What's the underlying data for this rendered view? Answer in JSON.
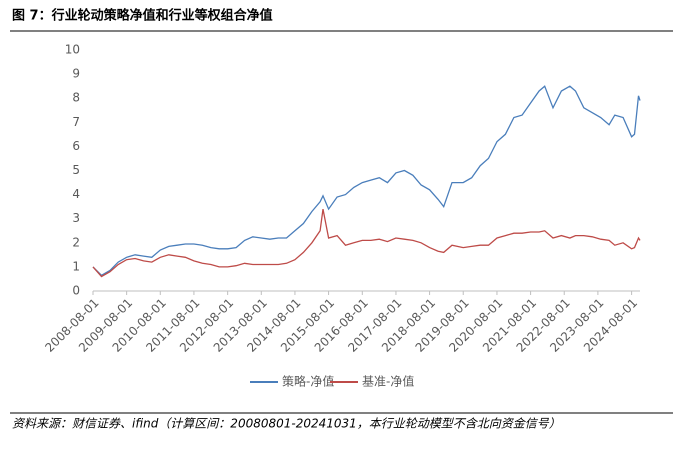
{
  "chart_data": {
    "type": "line",
    "title": "图 7：行业轮动策略净值和行业等权组合净值",
    "source": "资料来源：财信证券、ifind（计算区间：20080801-20241031，本行业轮动模型不含北向资金信号）",
    "x": [
      "2008-08-01",
      "2008-11-01",
      "2009-02-01",
      "2009-05-01",
      "2009-08-01",
      "2009-11-01",
      "2010-02-01",
      "2010-05-01",
      "2010-08-01",
      "2010-11-01",
      "2011-02-01",
      "2011-05-01",
      "2011-08-01",
      "2011-11-01",
      "2012-02-01",
      "2012-05-01",
      "2012-08-01",
      "2012-11-01",
      "2013-02-01",
      "2013-05-01",
      "2013-08-01",
      "2013-11-01",
      "2014-02-01",
      "2014-05-01",
      "2014-08-01",
      "2014-11-01",
      "2015-02-01",
      "2015-05-01",
      "2015-06-01",
      "2015-08-01",
      "2015-11-01",
      "2016-02-01",
      "2016-05-01",
      "2016-08-01",
      "2016-11-01",
      "2017-02-01",
      "2017-05-01",
      "2017-08-01",
      "2017-11-01",
      "2018-02-01",
      "2018-05-01",
      "2018-08-01",
      "2018-11-01",
      "2019-01-01",
      "2019-04-01",
      "2019-08-01",
      "2019-11-01",
      "2020-02-01",
      "2020-05-01",
      "2020-08-01",
      "2020-11-01",
      "2021-02-01",
      "2021-05-01",
      "2021-08-01",
      "2021-11-01",
      "2022-01-01",
      "2022-04-01",
      "2022-07-01",
      "2022-10-01",
      "2022-12-01",
      "2023-03-01",
      "2023-06-01",
      "2023-09-01",
      "2023-12-01",
      "2024-02-01",
      "2024-05-01",
      "2024-08-01",
      "2024-09-01",
      "2024-10-15",
      "2024-10-31"
    ],
    "series": [
      {
        "name": "策略-净值",
        "color": "#4a7ebb",
        "values": [
          1.0,
          0.65,
          0.85,
          1.2,
          1.4,
          1.5,
          1.45,
          1.4,
          1.7,
          1.85,
          1.9,
          1.95,
          1.95,
          1.9,
          1.8,
          1.75,
          1.75,
          1.8,
          2.1,
          2.25,
          2.2,
          2.15,
          2.2,
          2.2,
          2.5,
          2.8,
          3.3,
          3.7,
          3.95,
          3.4,
          3.9,
          4.0,
          4.3,
          4.5,
          4.6,
          4.7,
          4.5,
          4.9,
          5.0,
          4.8,
          4.4,
          4.2,
          3.8,
          3.5,
          4.5,
          4.5,
          4.7,
          5.2,
          5.5,
          6.2,
          6.5,
          7.2,
          7.3,
          7.8,
          8.3,
          8.5,
          7.6,
          8.3,
          8.5,
          8.3,
          7.6,
          7.4,
          7.2,
          6.9,
          7.3,
          7.2,
          6.4,
          6.5,
          8.1,
          7.9
        ]
      },
      {
        "name": "基准-净值",
        "color": "#be4b48",
        "values": [
          1.0,
          0.6,
          0.8,
          1.1,
          1.3,
          1.35,
          1.25,
          1.2,
          1.4,
          1.5,
          1.45,
          1.4,
          1.25,
          1.15,
          1.1,
          1.0,
          1.0,
          1.05,
          1.15,
          1.1,
          1.1,
          1.1,
          1.1,
          1.15,
          1.3,
          1.6,
          2.0,
          2.5,
          3.4,
          2.2,
          2.3,
          1.9,
          2.0,
          2.1,
          2.1,
          2.15,
          2.05,
          2.2,
          2.15,
          2.1,
          2.0,
          1.8,
          1.65,
          1.6,
          1.9,
          1.8,
          1.85,
          1.9,
          1.9,
          2.2,
          2.3,
          2.4,
          2.4,
          2.45,
          2.45,
          2.5,
          2.2,
          2.3,
          2.2,
          2.3,
          2.3,
          2.25,
          2.15,
          2.1,
          1.9,
          2.0,
          1.75,
          1.8,
          2.2,
          2.1
        ]
      }
    ],
    "xlim": [
      "2008-08-01",
      "2024-10-31"
    ],
    "xticks": [
      "2008-08-01",
      "2009-08-01",
      "2010-08-01",
      "2011-08-01",
      "2012-08-01",
      "2013-08-01",
      "2014-08-01",
      "2015-08-01",
      "2016-08-01",
      "2017-08-01",
      "2018-08-01",
      "2019-08-01",
      "2020-08-01",
      "2021-08-01",
      "2022-08-01",
      "2023-08-01",
      "2024-08-01"
    ],
    "ylim": [
      0,
      10
    ],
    "yticks": [
      0,
      1,
      2,
      3,
      4,
      5,
      6,
      7,
      8,
      9,
      10
    ],
    "grid": false,
    "legend": "bottom"
  }
}
